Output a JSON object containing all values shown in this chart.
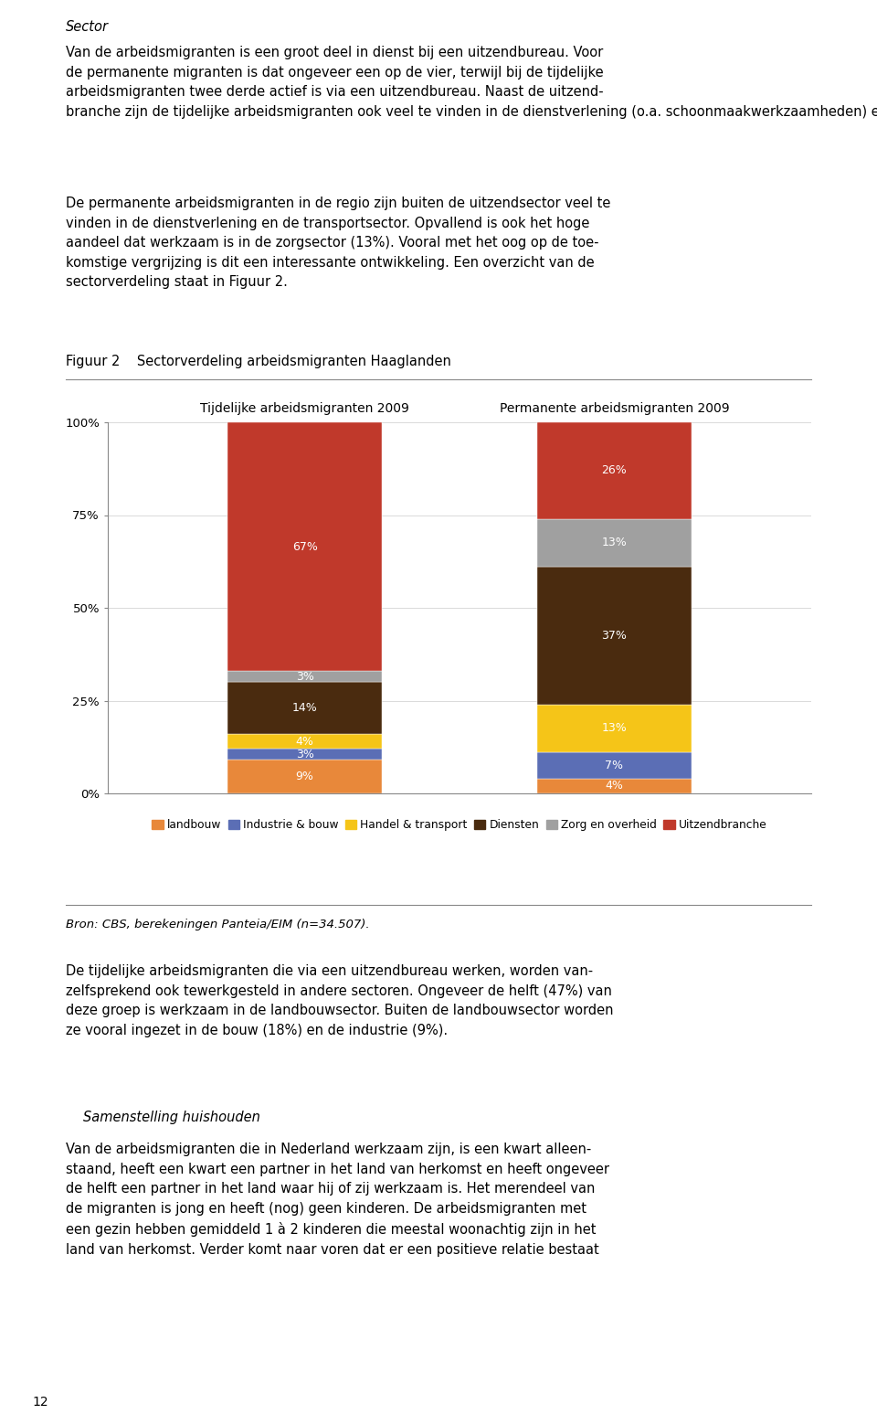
{
  "title": "Figuur 2    Sectorverdeling arbeidsmigranten Haaglanden",
  "col1_label": "Tijdelijke arbeidsmigranten 2009",
  "col2_label": "Permanente arbeidsmigranten 2009",
  "categories": [
    "landbouw",
    "Industrie & bouw",
    "Handel & transport",
    "Diensten",
    "Zorg en overheid",
    "Uitzendbranche"
  ],
  "colors": [
    "#E8883A",
    "#5B6EB5",
    "#F5C518",
    "#4A2B0F",
    "#A0A0A0",
    "#C0392B"
  ],
  "bar1_values": [
    9,
    3,
    4,
    14,
    3,
    67
  ],
  "bar2_values": [
    4,
    7,
    13,
    37,
    13,
    26
  ],
  "bar1_labels": [
    "9%",
    "3%",
    "4%",
    "14%",
    "3%",
    "67%"
  ],
  "bar2_labels": [
    "4%",
    "7%",
    "13%",
    "37%",
    "13%",
    "26%"
  ],
  "yticks": [
    0,
    25,
    50,
    75,
    100
  ],
  "ytick_labels": [
    "0%",
    "25%",
    "50%",
    "75%",
    "100%"
  ],
  "source_text": "Bron: CBS, berekeningen Panteia/EIM (n=34.507).",
  "italic_title": "Sector",
  "para1": "Van de arbeidsmigranten is een groot deel in dienst bij een uitzendbureau. Voor\nde permanente migranten is dat ongeveer een op de vier, terwijl bij de tijdelijke\narbeidsmigranten twee derde actief is via een uitzendbureau. Naast de uitzend-\nbranche zijn de tijdelijke arbeidsmigranten ook veel te vinden in de dienstverlening (o.a. schoonmaakwerkzaamheden) en in de landbouwsector.",
  "para2": "De permanente arbeidsmigranten in de regio zijn buiten de uitzendsector veel te\nvinden in de dienstverlening en de transportsector. Opvallend is ook het hoge\naandeel dat werkzaam is in de zorgsector (13%). Vooral met het oog op de toe-\nkomstige vergrijzing is dit een interessante ontwikkeling. Een overzicht van de\nsectorverdeling staat in Figuur 2.",
  "para3": "De tijdelijke arbeidsmigranten die via een uitzendbureau werken, worden van-\nzelfsprekend ook tewerkgesteld in andere sectoren. Ongeveer de helft (47%) van\ndeze groep is werkzaam in de landbouwsector. Buiten de landbouwsector worden\nze vooral ingezet in de bouw (18%) en de industrie (9%).",
  "italic_title2": "Samenstelling huishouden",
  "para4": "Van de arbeidsmigranten die in Nederland werkzaam zijn, is een kwart alleen-\nstaand, heeft een kwart een partner in het land van herkomst en heeft ongeveer\nde helft een partner in het land waar hij of zij werkzaam is. Het merendeel van\nde migranten is jong en heeft (nog) geen kinderen. De arbeidsmigranten met\neen gezin hebben gemiddeld 1 à 2 kinderen die meestal woonachtig zijn in het\nland van herkomst. Verder komt naar voren dat er een positieve relatie bestaat",
  "page_number": "12",
  "background_color": "#FFFFFF",
  "text_color": "#000000",
  "fig_width": 9.6,
  "fig_height": 15.47,
  "dpi": 100
}
